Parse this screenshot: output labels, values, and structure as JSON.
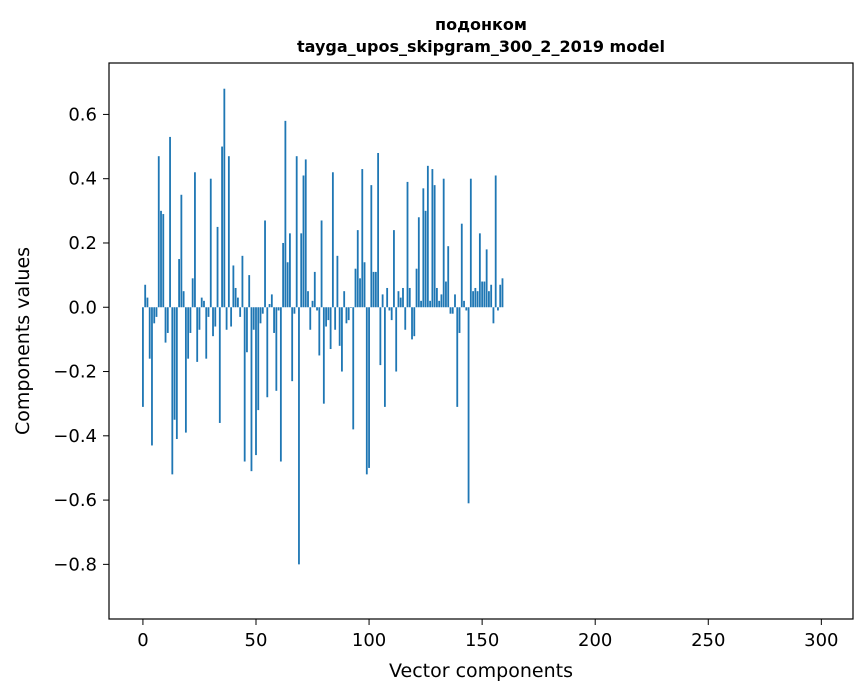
{
  "chart_data": {
    "type": "bar",
    "title": "подонком",
    "subtitle": "tayga_upos_skipgram_300_2_2019 model",
    "xlabel": "Vector components",
    "ylabel": "Components values",
    "xlim": [
      -15,
      314
    ],
    "ylim": [
      -0.97,
      0.76
    ],
    "xticks": [
      0,
      50,
      100,
      150,
      200,
      250,
      300
    ],
    "yticks": [
      -0.8,
      -0.6,
      -0.4,
      -0.2,
      0.0,
      0.2,
      0.4,
      0.6
    ],
    "ytick_labels": [
      "−0.8",
      "−0.6",
      "−0.4",
      "−0.2",
      "0.0",
      "0.2",
      "0.4",
      "0.6"
    ],
    "bar_color": "#1f77b4",
    "values": [
      -0.31,
      0.07,
      0.03,
      -0.16,
      -0.43,
      -0.05,
      -0.03,
      0.47,
      0.3,
      0.29,
      -0.11,
      -0.08,
      0.53,
      -0.52,
      -0.35,
      -0.41,
      0.15,
      0.35,
      0.05,
      -0.39,
      -0.16,
      -0.08,
      0.09,
      0.42,
      -0.17,
      -0.07,
      0.03,
      0.02,
      -0.16,
      -0.03,
      0.4,
      -0.09,
      -0.06,
      0.25,
      -0.36,
      0.5,
      0.68,
      -0.07,
      0.47,
      -0.06,
      0.13,
      0.06,
      0.03,
      -0.03,
      0.16,
      -0.48,
      -0.14,
      0.1,
      -0.51,
      -0.07,
      -0.46,
      -0.32,
      -0.05,
      -0.02,
      0.27,
      -0.28,
      0.01,
      0.04,
      -0.08,
      -0.26,
      -0.01,
      -0.48,
      0.2,
      0.58,
      0.14,
      0.23,
      -0.23,
      -0.02,
      0.47,
      -0.8,
      0.23,
      0.41,
      0.46,
      0.05,
      -0.07,
      0.02,
      0.11,
      -0.01,
      -0.15,
      0.27,
      -0.3,
      -0.06,
      -0.04,
      -0.13,
      0.42,
      -0.07,
      0.16,
      -0.12,
      -0.2,
      0.05,
      -0.05,
      -0.04,
      0.0,
      -0.38,
      0.12,
      0.24,
      0.09,
      0.43,
      0.14,
      -0.52,
      -0.5,
      0.38,
      0.11,
      0.11,
      0.48,
      -0.18,
      0.04,
      -0.31,
      0.06,
      -0.01,
      -0.04,
      0.24,
      -0.2,
      0.05,
      0.03,
      0.06,
      -0.07,
      0.39,
      0.06,
      -0.1,
      -0.09,
      0.12,
      0.28,
      0.02,
      0.37,
      0.3,
      0.44,
      0.02,
      0.43,
      0.38,
      0.06,
      0.02,
      0.04,
      0.4,
      0.08,
      0.19,
      -0.02,
      -0.02,
      0.04,
      -0.31,
      -0.08,
      0.26,
      0.02,
      -0.01,
      -0.61,
      0.4,
      0.05,
      0.06,
      0.05,
      0.23,
      0.08,
      0.08,
      0.18,
      0.05,
      0.07,
      -0.05,
      0.41,
      -0.01,
      0.07,
      0.09
    ]
  }
}
